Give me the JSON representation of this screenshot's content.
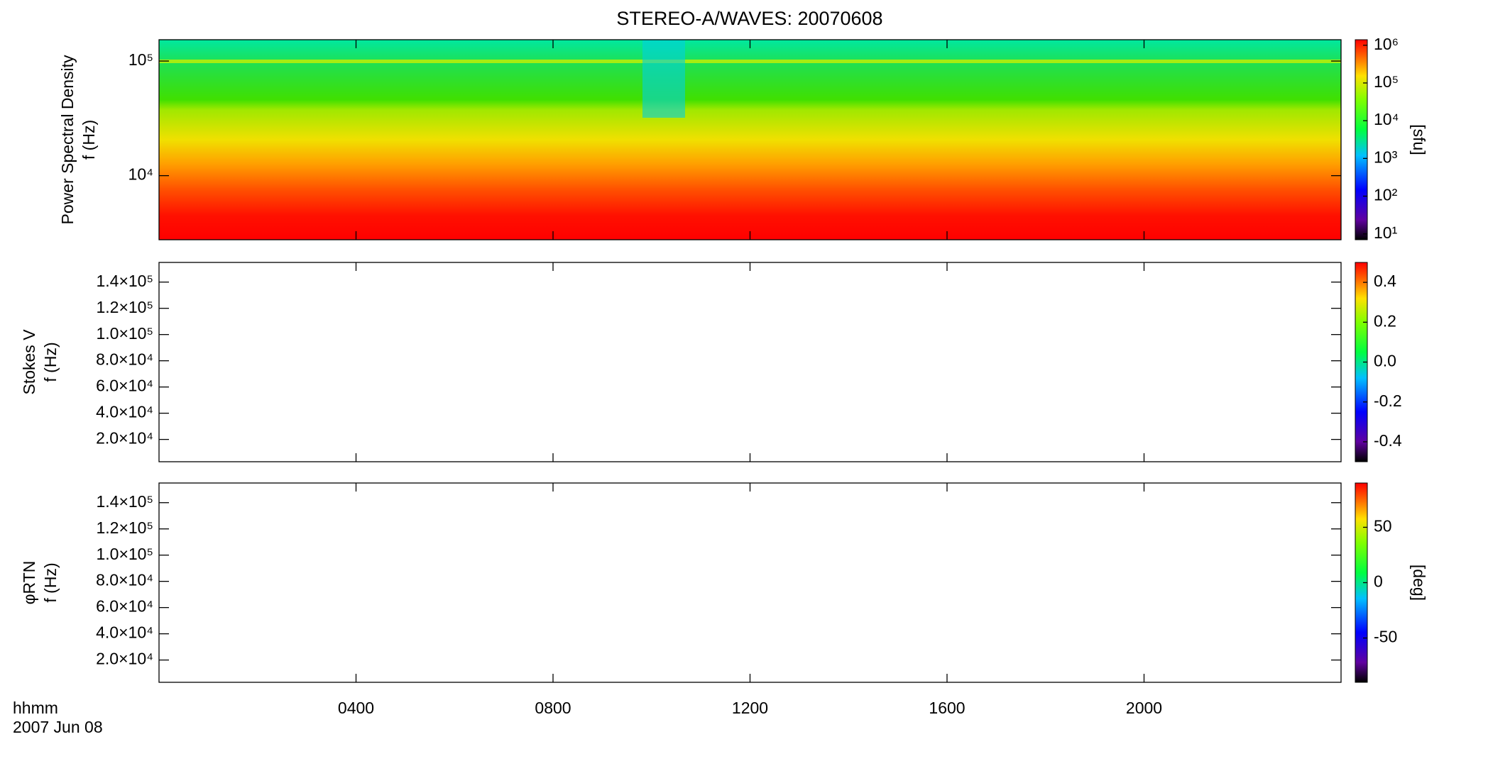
{
  "chart_data": [
    {
      "type": "spectrogram",
      "title": "STEREO-A/WAVES: 20070608",
      "ylabel": [
        "Power Spectral Density",
        "f (Hz)"
      ],
      "log_y": true,
      "ylim": [
        2760,
        153500
      ],
      "yticks": [
        {
          "value": 10000,
          "label": "10⁴"
        },
        {
          "value": 100000,
          "label": "10⁵"
        }
      ],
      "colorbar": {
        "log": true,
        "zlim": [
          7,
          1400000
        ],
        "ticks": [
          {
            "value": 10,
            "label": "10¹"
          },
          {
            "value": 100,
            "label": "10²"
          },
          {
            "value": 1000,
            "label": "10³"
          },
          {
            "value": 10000,
            "label": "10⁴"
          },
          {
            "value": 100000,
            "label": "10⁵"
          },
          {
            "value": 1000000,
            "label": "10⁶"
          }
        ],
        "label": "[sfu]"
      }
    },
    {
      "type": "spectrogram",
      "ylabel": [
        "Stokes V",
        "f (Hz)"
      ],
      "log_y": false,
      "ylim": [
        3000,
        155000
      ],
      "yticks": [
        {
          "value": 20000,
          "label": "2.0×10⁴"
        },
        {
          "value": 40000,
          "label": "4.0×10⁴"
        },
        {
          "value": 60000,
          "label": "6.0×10⁴"
        },
        {
          "value": 80000,
          "label": "8.0×10⁴"
        },
        {
          "value": 100000,
          "label": "1.0×10⁵"
        },
        {
          "value": 120000,
          "label": "1.2×10⁵"
        },
        {
          "value": 140000,
          "label": "1.4×10⁵"
        }
      ],
      "colorbar": {
        "log": false,
        "zlim": [
          -0.5,
          0.5
        ],
        "ticks": [
          {
            "value": -0.4,
            "label": "-0.4"
          },
          {
            "value": -0.2,
            "label": "-0.2"
          },
          {
            "value": 0,
            "label": "0.0"
          },
          {
            "value": 0.2,
            "label": "0.2"
          },
          {
            "value": 0.4,
            "label": "0.4"
          }
        ]
      }
    },
    {
      "type": "spectrogram",
      "ylabel": [
        "φRTN",
        "f (Hz)"
      ],
      "log_y": false,
      "ylim": [
        3000,
        155000
      ],
      "yticks": [
        {
          "value": 20000,
          "label": "2.0×10⁴"
        },
        {
          "value": 40000,
          "label": "4.0×10⁴"
        },
        {
          "value": 60000,
          "label": "6.0×10⁴"
        },
        {
          "value": 80000,
          "label": "8.0×10⁴"
        },
        {
          "value": 100000,
          "label": "1.0×10⁵"
        },
        {
          "value": 120000,
          "label": "1.2×10⁵"
        },
        {
          "value": 140000,
          "label": "1.4×10⁵"
        }
      ],
      "colorbar": {
        "log": false,
        "zlim": [
          -90,
          90
        ],
        "ticks": [
          -50,
          0,
          50
        ],
        "label": "[deg]"
      },
      "xlabel": [
        "hhmm",
        "2007 Jun 08"
      ],
      "xlim": [
        0,
        24
      ],
      "xticks": [
        {
          "value": 4,
          "label": "0400"
        },
        {
          "value": 8,
          "label": "0800"
        },
        {
          "value": 12,
          "label": "1200"
        },
        {
          "value": 16,
          "label": "1600"
        },
        {
          "value": 20,
          "label": "2000"
        }
      ]
    }
  ]
}
